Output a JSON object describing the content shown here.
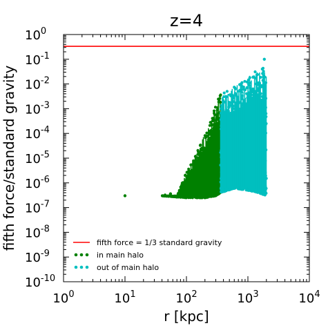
{
  "chart_data": {
    "type": "scatter",
    "title": "z=4",
    "xlabel": "r [kpc]",
    "ylabel": "fifth force/standard gravity",
    "xscale": "log",
    "yscale": "log",
    "xlim": [
      1,
      10000
    ],
    "ylim": [
      1e-10,
      1
    ],
    "x_ticks": [
      {
        "value": 1,
        "base": "10",
        "exp": "0"
      },
      {
        "value": 10,
        "base": "10",
        "exp": "1"
      },
      {
        "value": 100,
        "base": "10",
        "exp": "2"
      },
      {
        "value": 1000,
        "base": "10",
        "exp": "3"
      },
      {
        "value": 10000,
        "base": "10",
        "exp": "4"
      }
    ],
    "y_ticks": [
      {
        "value": 1,
        "base": "10",
        "exp": "0"
      },
      {
        "value": 0.1,
        "base": "10",
        "exp": "-1"
      },
      {
        "value": 0.01,
        "base": "10",
        "exp": "-2"
      },
      {
        "value": 0.001,
        "base": "10",
        "exp": "-3"
      },
      {
        "value": 0.0001,
        "base": "10",
        "exp": "-4"
      },
      {
        "value": 1e-05,
        "base": "10",
        "exp": "-5"
      },
      {
        "value": 1e-06,
        "base": "10",
        "exp": "-6"
      },
      {
        "value": 1e-07,
        "base": "10",
        "exp": "-7"
      },
      {
        "value": 1e-08,
        "base": "10",
        "exp": "-8"
      },
      {
        "value": 1e-09,
        "base": "10",
        "exp": "-9"
      },
      {
        "value": 1e-10,
        "base": "10",
        "exp": "-10"
      }
    ],
    "grid": false,
    "legend_position": "bottom-left",
    "reference_line": {
      "name": "fifth force = 1/3 standard gravity",
      "y": 0.3333,
      "color": "#ff0000"
    },
    "series": [
      {
        "name": "in main halo",
        "color": "#008000",
        "x_range": [
          40,
          360
        ],
        "upper_envelope": [
          [
            40,
            3e-07
          ],
          [
            70,
            3e-07
          ],
          [
            100,
            3e-06
          ],
          [
            150,
            2e-05
          ],
          [
            200,
            0.0001
          ],
          [
            250,
            0.0004
          ],
          [
            300,
            0.0015
          ],
          [
            360,
            0.004
          ]
        ],
        "lower_envelope": [
          [
            40,
            3e-07
          ],
          [
            100,
            2.5e-07
          ],
          [
            200,
            2.5e-07
          ],
          [
            300,
            3e-07
          ],
          [
            360,
            4e-07
          ]
        ],
        "outliers": [
          [
            10,
            3e-07
          ],
          [
            45,
            3.2e-07
          ],
          [
            55,
            3.6e-07
          ]
        ]
      },
      {
        "name": "out of main halo",
        "color": "#00bfbf",
        "x_range": [
          360,
          2000
        ],
        "upper_envelope": [
          [
            360,
            0.004
          ],
          [
            500,
            0.006
          ],
          [
            700,
            0.01
          ],
          [
            1000,
            0.02
          ],
          [
            1500,
            0.04
          ],
          [
            2000,
            0.06
          ]
        ],
        "lower_envelope": [
          [
            360,
            4e-07
          ],
          [
            600,
            6e-07
          ],
          [
            1000,
            5e-07
          ],
          [
            1500,
            4e-07
          ],
          [
            2000,
            3e-07
          ]
        ],
        "outliers": [
          [
            1850,
            0.1
          ]
        ]
      }
    ]
  }
}
